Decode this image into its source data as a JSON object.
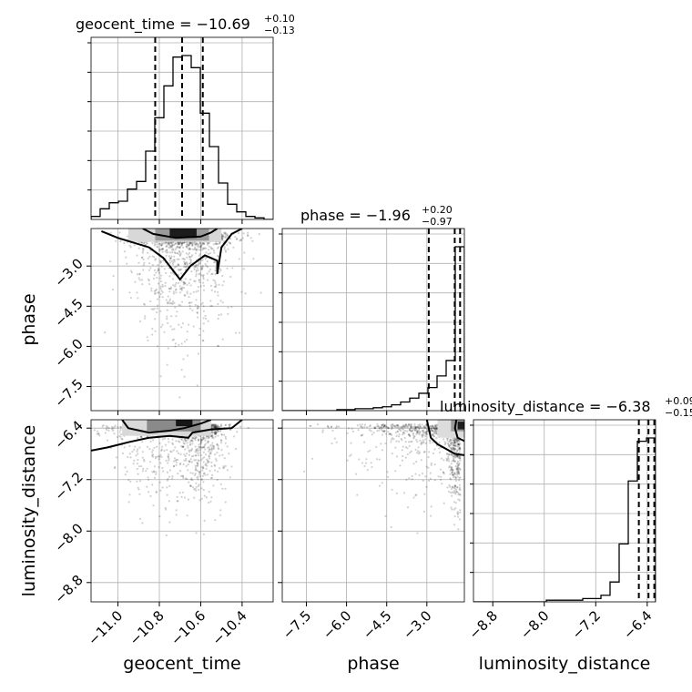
{
  "chart_data": {
    "type": "corner",
    "parameters": [
      "geocent_time",
      "phase",
      "luminosity_distance"
    ],
    "axis_labels": {
      "geocent_time": "geocent_time",
      "phase": "phase",
      "luminosity_distance": "luminosity_distance"
    },
    "ranges": {
      "geocent_time": [
        -11.13,
        -10.25
      ],
      "phase": [
        -8.4,
        -1.6
      ],
      "luminosity_distance": [
        -9.1,
        -6.27
      ]
    },
    "ticks": {
      "geocent_time": [
        -11.0,
        -10.8,
        -10.6,
        -10.4
      ],
      "phase": [
        -7.5,
        -6.0,
        -4.5,
        -3.0
      ],
      "luminosity_distance": [
        -8.8,
        -8.0,
        -7.2,
        -6.4
      ]
    },
    "tick_labels": {
      "geocent_time": [
        "−11.0",
        "−10.8",
        "−10.6",
        "−10.4"
      ],
      "phase": [
        "−7.5",
        "−6.0",
        "−4.5",
        "−3.0"
      ],
      "luminosity_distance": [
        "−8.8",
        "−8.0",
        "−7.2",
        "−6.4"
      ]
    },
    "titles": {
      "geocent_time": {
        "name": "geocent_time",
        "median": "−10.69",
        "plus": "+0.10",
        "minus": "−0.13"
      },
      "phase": {
        "name": "phase",
        "median": "−1.96",
        "plus": "+0.20",
        "minus": "−0.97"
      },
      "luminosity_distance": {
        "name": "luminosity_distance",
        "median": "−6.38",
        "plus": "+0.09",
        "minus": "−0.15"
      }
    },
    "quantiles": {
      "geocent_time": [
        -10.82,
        -10.69,
        -10.59
      ],
      "phase": [
        -2.93,
        -1.96,
        -1.76
      ],
      "luminosity_distance": [
        -6.53,
        -6.38,
        -6.29
      ]
    },
    "histograms": {
      "geocent_time": {
        "edges": [
          -11.13,
          -11.086,
          -11.042,
          -10.998,
          -10.954,
          -10.91,
          -10.866,
          -10.822,
          -10.778,
          -10.734,
          -10.69,
          -10.646,
          -10.602,
          -10.558,
          -10.514,
          -10.47,
          -10.426,
          -10.382,
          -10.338,
          -10.294,
          -10.25
        ],
        "counts": [
          2,
          7,
          11,
          12,
          20,
          25,
          45,
          67,
          88,
          107,
          108,
          100,
          70,
          48,
          24,
          10,
          5,
          2,
          1,
          0
        ]
      },
      "phase": {
        "edges": [
          -8.4,
          -8.06,
          -7.72,
          -7.38,
          -7.04,
          -6.7,
          -6.36,
          -6.02,
          -5.68,
          -5.34,
          -5.0,
          -4.66,
          -4.32,
          -3.98,
          -3.64,
          -3.3,
          -2.96,
          -2.62,
          -2.28,
          -1.94,
          -1.6
        ],
        "counts": [
          0,
          0,
          0,
          0,
          0,
          0,
          1,
          1,
          2,
          2,
          3,
          4,
          6,
          9,
          13,
          18,
          24,
          36,
          52,
          170
        ]
      },
      "luminosity_distance": {
        "edges": [
          -9.1,
          -8.9585,
          -8.817,
          -8.6755,
          -8.534,
          -8.3925,
          -8.251,
          -8.1095,
          -7.968,
          -7.8265,
          -7.685,
          -7.5435,
          -7.402,
          -7.2605,
          -7.119,
          -6.9775,
          -6.836,
          -6.6945,
          -6.553,
          -6.4115,
          -6.27
        ],
        "counts": [
          0,
          0,
          0,
          0,
          0,
          0,
          0,
          0,
          1,
          1,
          1,
          1,
          2,
          2,
          4,
          12,
          35,
          73,
          97,
          99
        ]
      }
    },
    "grid": true,
    "contour_levels": [
      0.393,
      0.865
    ]
  }
}
